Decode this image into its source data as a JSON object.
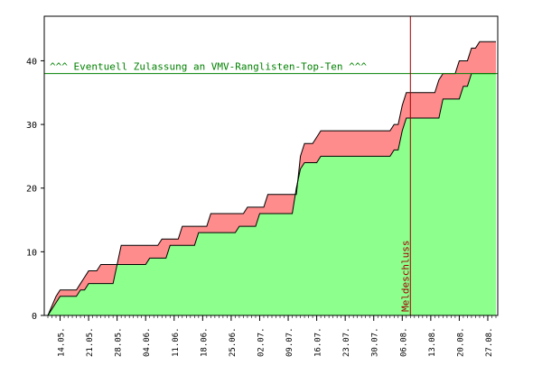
{
  "chart_data": {
    "type": "area",
    "title": "",
    "xlabel": "",
    "ylabel": "",
    "ylim": [
      0,
      47
    ],
    "yticks": [
      0,
      10,
      20,
      30,
      40
    ],
    "xtick_labels": [
      "14.05.",
      "21.05.",
      "28.05.",
      "04.06.",
      "11.06.",
      "18.06.",
      "25.06.",
      "02.07.",
      "09.07.",
      "16.07.",
      "23.07.",
      "30.07.",
      "06.08.",
      "13.08.",
      "20.08.",
      "27.08."
    ],
    "x_days_first_tick": 3,
    "x_days_last": 110,
    "grid": false,
    "colors": {
      "lower": "#8cff8c",
      "upper": "#ff8c8c",
      "threshold_line": "#008000",
      "deadline_line": "#a00000",
      "line": "#000000"
    },
    "series": [
      {
        "values": [
          [
            0,
            0
          ],
          [
            2,
            2
          ],
          [
            3,
            3
          ],
          [
            7,
            3
          ],
          [
            8,
            4
          ],
          [
            9,
            4
          ],
          [
            10,
            5
          ],
          [
            16,
            5
          ],
          [
            17,
            8
          ],
          [
            24,
            8
          ],
          [
            25,
            9
          ],
          [
            29,
            9
          ],
          [
            30,
            11
          ],
          [
            36,
            11
          ],
          [
            37,
            13
          ],
          [
            46,
            13
          ],
          [
            47,
            14
          ],
          [
            51,
            14
          ],
          [
            52,
            16
          ],
          [
            60,
            16
          ],
          [
            61,
            20
          ],
          [
            62,
            23
          ],
          [
            63,
            24
          ],
          [
            66,
            24
          ],
          [
            67,
            25
          ],
          [
            84,
            25
          ],
          [
            85,
            26
          ],
          [
            86,
            26
          ],
          [
            87,
            29
          ],
          [
            88,
            31
          ],
          [
            96,
            31
          ],
          [
            97,
            34
          ],
          [
            101,
            34
          ],
          [
            102,
            36
          ],
          [
            103,
            36
          ],
          [
            104,
            38
          ],
          [
            110,
            38
          ]
        ]
      },
      {
        "values": [
          [
            0,
            0
          ],
          [
            2,
            3
          ],
          [
            3,
            4
          ],
          [
            7,
            4
          ],
          [
            8,
            5
          ],
          [
            9,
            6
          ],
          [
            10,
            7
          ],
          [
            12,
            7
          ],
          [
            13,
            8
          ],
          [
            17,
            8
          ],
          [
            18,
            11
          ],
          [
            27,
            11
          ],
          [
            28,
            12
          ],
          [
            32,
            12
          ],
          [
            33,
            14
          ],
          [
            39,
            14
          ],
          [
            40,
            16
          ],
          [
            48,
            16
          ],
          [
            49,
            17
          ],
          [
            53,
            17
          ],
          [
            54,
            19
          ],
          [
            61,
            19
          ],
          [
            62,
            25
          ],
          [
            63,
            27
          ],
          [
            65,
            27
          ],
          [
            66,
            28
          ],
          [
            67,
            29
          ],
          [
            84,
            29
          ],
          [
            85,
            30
          ],
          [
            86,
            30
          ],
          [
            87,
            33
          ],
          [
            88,
            35
          ],
          [
            95,
            35
          ],
          [
            96,
            37
          ],
          [
            97,
            38
          ],
          [
            100,
            38
          ],
          [
            101,
            40
          ],
          [
            103,
            40
          ],
          [
            104,
            42
          ],
          [
            105,
            42
          ],
          [
            106,
            43
          ],
          [
            110,
            43
          ]
        ]
      }
    ],
    "threshold": {
      "y": 38,
      "label": "^^^ Eventuell Zulassung an VMV-Ranglisten-Top-Ten ^^^"
    },
    "deadline": {
      "x": 89,
      "label": "Meldeschluss"
    }
  }
}
